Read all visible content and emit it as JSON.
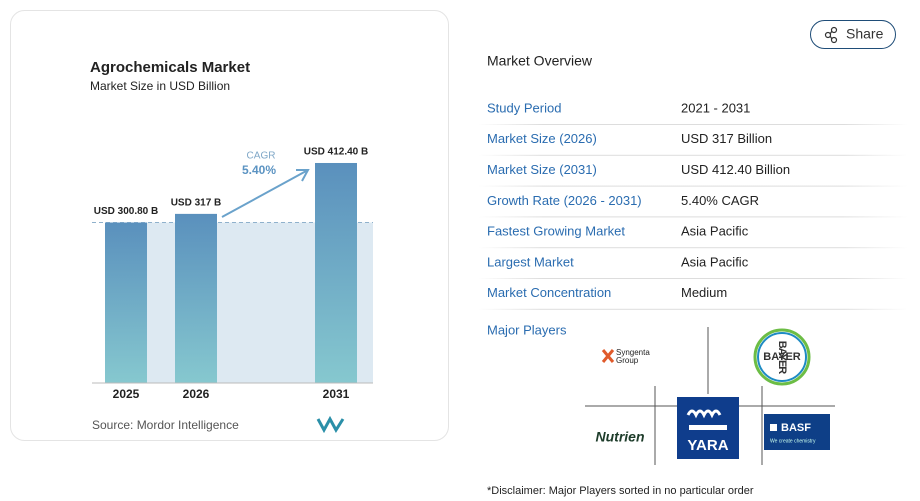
{
  "chart_data": {
    "type": "bar",
    "title": "Agrochemicals Market",
    "subtitle": "Market Size in USD Billion",
    "categories": [
      "2025",
      "2026",
      "2031"
    ],
    "values": [
      300.8,
      317,
      412.4
    ],
    "value_labels": [
      "USD 300.80 B",
      "USD 317 B",
      "USD 412.40 B"
    ],
    "cagr_label": "CAGR",
    "cagr_value": "5.40%",
    "source": "Source: Mordor Intelligence"
  },
  "share": "Share",
  "overview": {
    "title": "Market Overview",
    "rows": [
      [
        "Study Period",
        "2021 - 2031"
      ],
      [
        "Market Size (2026)",
        "USD 317 Billion"
      ],
      [
        "Market Size (2031)",
        "USD 412.40 Billion"
      ],
      [
        "Growth Rate (2026 - 2031)",
        "5.40% CAGR"
      ],
      [
        "Fastest Growing Market",
        "Asia Pacific"
      ],
      [
        "Largest Market",
        "Asia Pacific"
      ],
      [
        "Market Concentration",
        "Medium"
      ]
    ],
    "players_label": "Major Players",
    "players": {
      "syngenta": [
        "Syngenta",
        "Group"
      ],
      "bayer": "BAYER",
      "nutrien": "Nutrien",
      "yara": "YARA",
      "basf": [
        "BASF",
        "We create chemistry"
      ]
    },
    "disclaimer": "*Disclaimer: Major Players sorted in no particular order"
  }
}
